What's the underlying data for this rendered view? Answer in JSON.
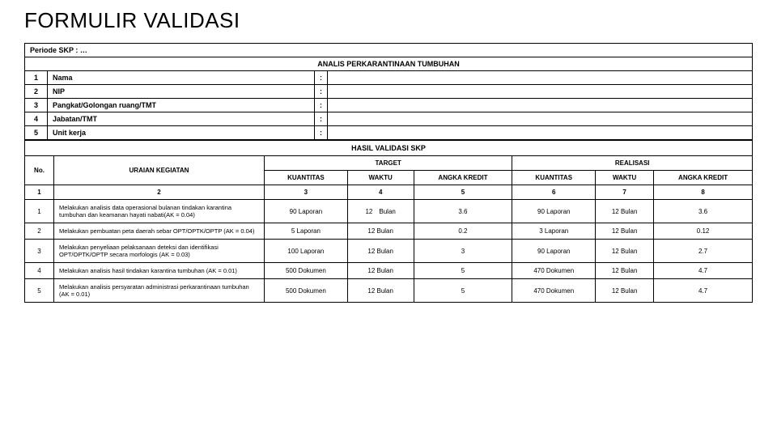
{
  "title": "FORMULIR VALIDASI",
  "periode": "Periode SKP : …",
  "subtitle": "ANALIS PERKARANTINAAN TUMBUHAN",
  "info_rows": [
    {
      "n": "1",
      "label": "Nama"
    },
    {
      "n": "2",
      "label": "NIP"
    },
    {
      "n": "3",
      "label": "Pangkat/Golongan ruang/TMT"
    },
    {
      "n": "4",
      "label": "Jabatan/TMT"
    },
    {
      "n": "5",
      "label": "Unit kerja"
    }
  ],
  "colon": ":",
  "hasil_title": "HASIL VALIDASI SKP",
  "headers": {
    "no": "No.",
    "uraian": "URAIAN KEGIATAN",
    "target": "TARGET",
    "realisasi": "REALISASI",
    "kuantitas": "KUANTITAS",
    "waktu": "WAKTU",
    "angka": "ANGKA KREDIT"
  },
  "colnums": {
    "c1": "1",
    "c2": "2",
    "c3": "3",
    "c4": "4",
    "c5": "5",
    "c6": "6",
    "c7": "7",
    "c8": "8"
  },
  "rows": [
    {
      "no": "1",
      "uraian": "Melakukan analisis data operasional bulanan tindakan karantina tumbuhan dan keamanan hayati nabati(AK = 0.04)",
      "tq": "90 Laporan",
      "tw": "12 Bulan",
      "ta": "3.6",
      "rq": "90 Laporan",
      "rw": "12 Bulan",
      "ra": "3.6"
    },
    {
      "no": "2",
      "uraian": "Melakukan pembuatan peta daerah sebar OPT/OPTK/OPTP (AK = 0.04)",
      "tq": "5 Laporan",
      "tw": "12 Bulan",
      "ta": "0.2",
      "rq": "3 Laporan",
      "rw": "12 Bulan",
      "ra": "0.12"
    },
    {
      "no": "3",
      "uraian": "Melakukan penyeliaan pelaksanaan deteksi dan identifikasi OPT/OPTK/OPTP secara morfologis (AK = 0.03)",
      "tq": "100 Laporan",
      "tw": "12 Bulan",
      "ta": "3",
      "rq": "90 Laporan",
      "rw": "12 Bulan",
      "ra": "2.7"
    },
    {
      "no": "4",
      "uraian": "Melakukan analisis hasil tindakan karantina tumbuhan (AK = 0.01)",
      "tq": "500 Dokumen",
      "tw": "12 Bulan",
      "ta": "5",
      "rq": "470 Dokumen",
      "rw": "12 Bulan",
      "ra": "4.7"
    },
    {
      "no": "5",
      "uraian": "Melakukan analisis persyaratan administrasi perkarantinaan tumbuhan (AK = 0.01)",
      "tq": "500 Dokumen",
      "tw": "12 Bulan",
      "ta": "5",
      "rq": "470 Dokumen",
      "rw": "12 Bulan",
      "ra": "4.7"
    }
  ]
}
